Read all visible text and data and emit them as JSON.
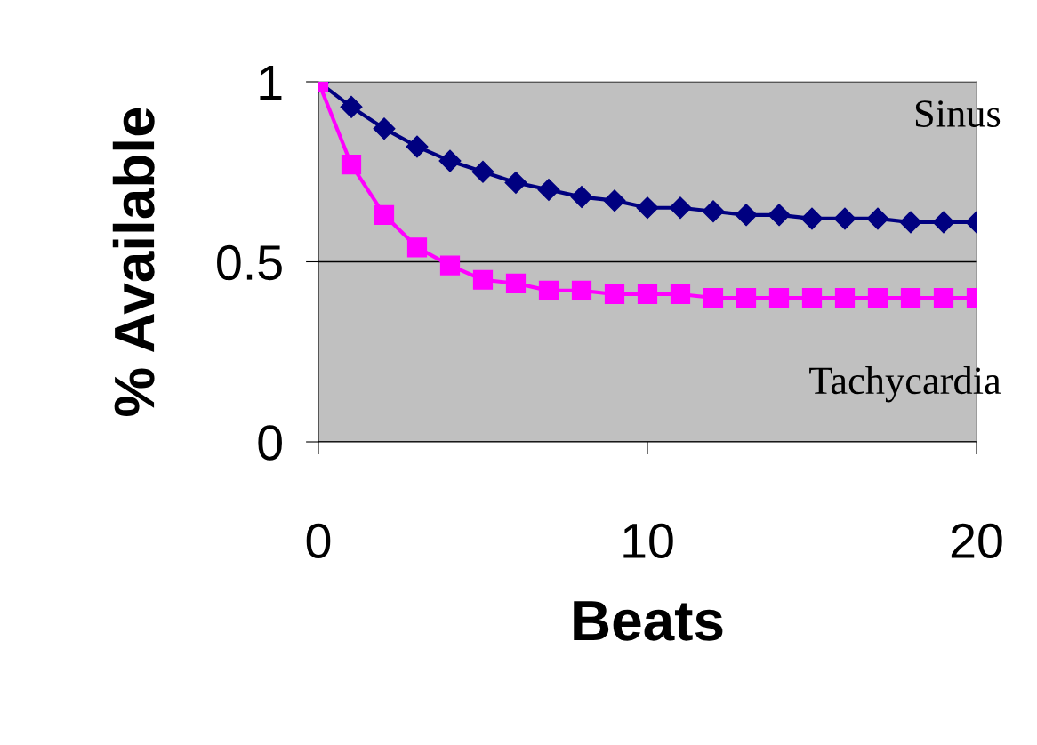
{
  "chart_data": {
    "type": "line",
    "xlabel": "Beats",
    "ylabel": "% Available",
    "x": [
      0,
      1,
      2,
      3,
      4,
      5,
      6,
      7,
      8,
      9,
      10,
      11,
      12,
      13,
      14,
      15,
      16,
      17,
      18,
      19,
      20
    ],
    "series": [
      {
        "name": "Sinus",
        "color": "#000080",
        "marker": "diamond",
        "values": [
          1.0,
          0.93,
          0.87,
          0.82,
          0.78,
          0.75,
          0.72,
          0.7,
          0.68,
          0.67,
          0.65,
          0.65,
          0.64,
          0.63,
          0.63,
          0.62,
          0.62,
          0.62,
          0.61,
          0.61,
          0.61
        ]
      },
      {
        "name": "Tachycardia",
        "color": "#ff00ff",
        "marker": "square",
        "values": [
          1.0,
          0.77,
          0.63,
          0.54,
          0.49,
          0.45,
          0.44,
          0.42,
          0.42,
          0.41,
          0.41,
          0.41,
          0.4,
          0.4,
          0.4,
          0.4,
          0.4,
          0.4,
          0.4,
          0.4,
          0.4
        ]
      }
    ],
    "xlim": [
      0,
      20
    ],
    "xticks": [
      0,
      10,
      20
    ],
    "ylim": [
      0,
      1
    ],
    "yticks": [
      0,
      0.5,
      1
    ],
    "grid": "y",
    "legend": false,
    "line_style": "solid"
  }
}
